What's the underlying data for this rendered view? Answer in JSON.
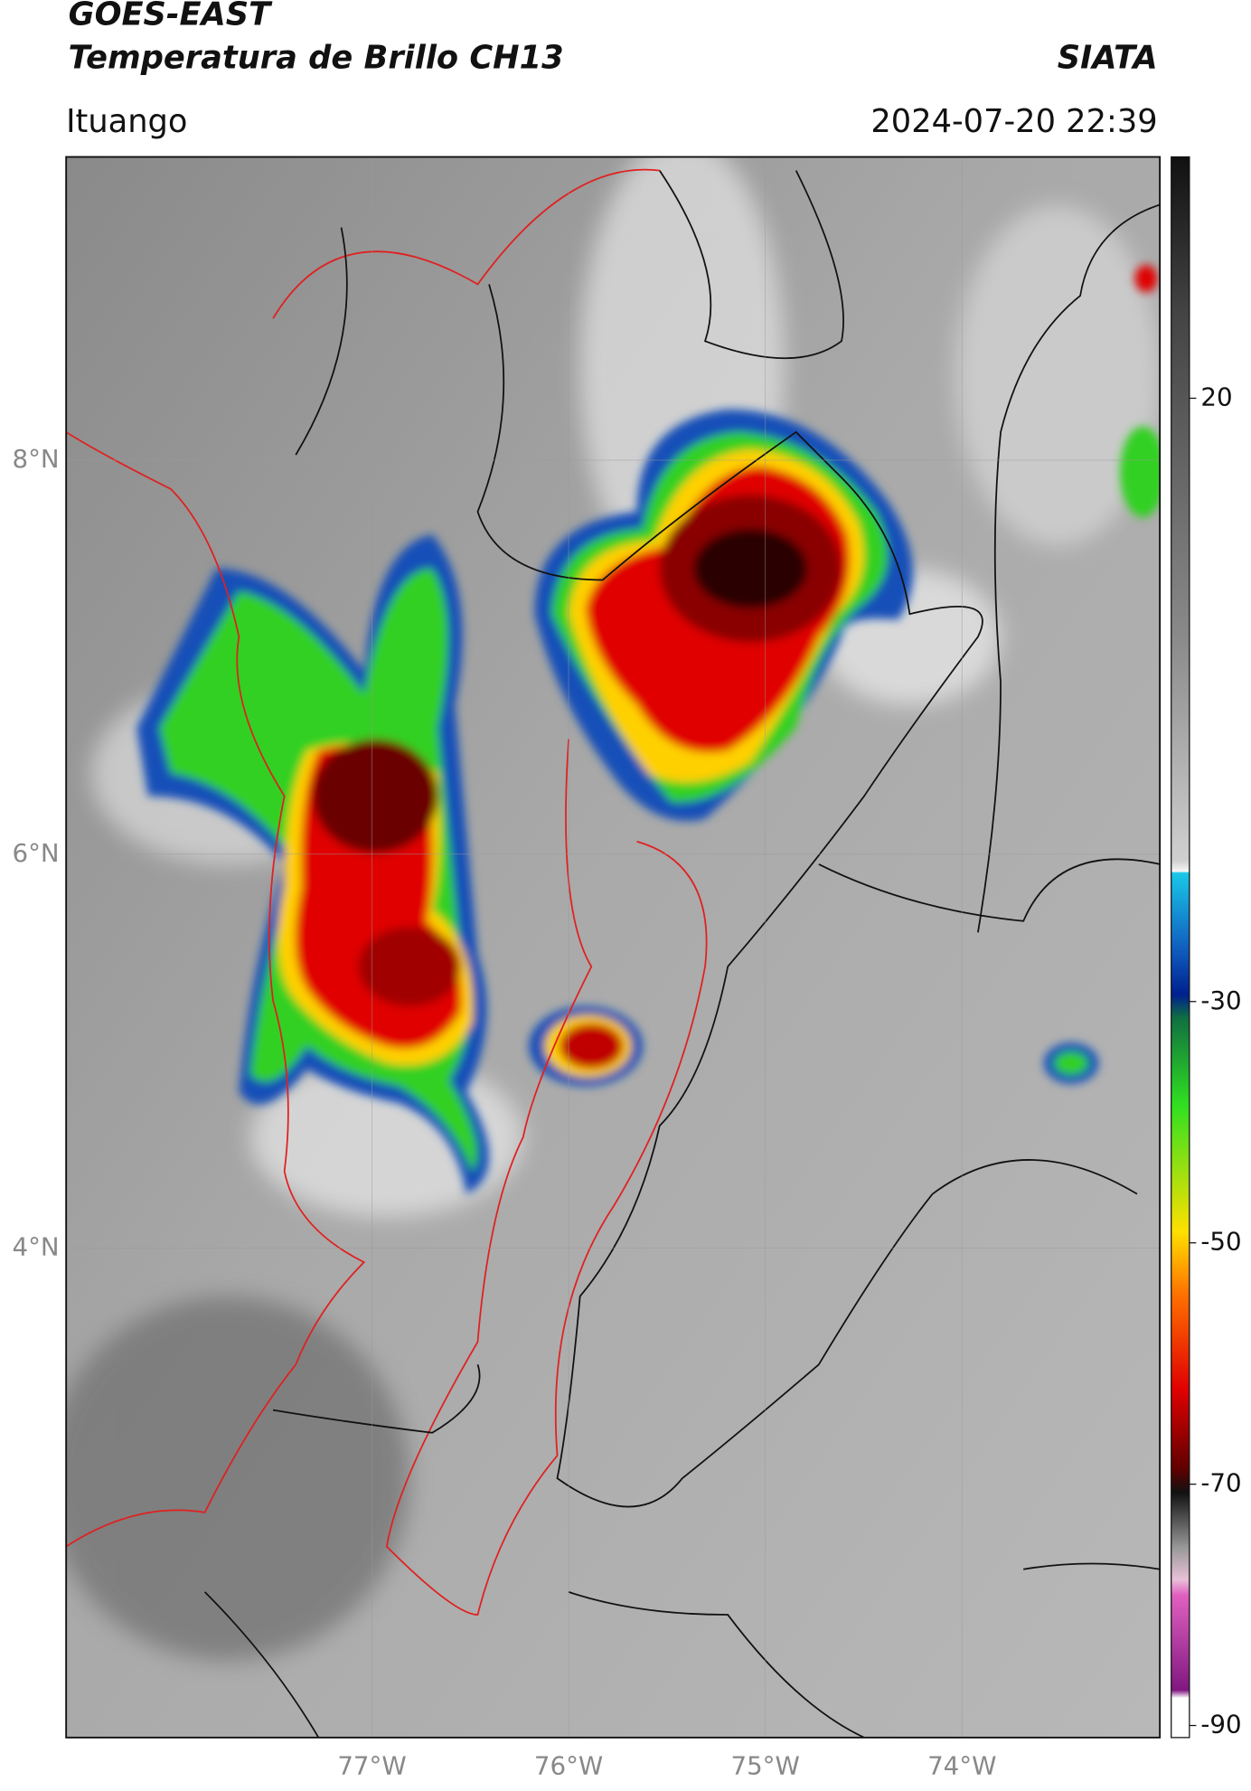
{
  "header": {
    "title": "GOES-EAST",
    "subtitle": "Temperatura de Brillo CH13",
    "source": "SIATA",
    "location": "Ituango",
    "datetime": "2024-07-20 22:39"
  },
  "map": {
    "xlim": [
      -78.555,
      -72.994
    ],
    "ylim": [
      1.516,
      9.539
    ],
    "lon_ticks": [
      {
        "value": -77,
        "label": "77°W"
      },
      {
        "value": -76,
        "label": "76°W"
      },
      {
        "value": -75,
        "label": "75°W"
      },
      {
        "value": -74,
        "label": "74°W"
      }
    ],
    "lat_ticks": [
      {
        "value": 8,
        "label": "8°N"
      },
      {
        "value": 6,
        "label": "6°N"
      },
      {
        "value": 4,
        "label": "4°N"
      }
    ],
    "grid": true
  },
  "colorbar": {
    "range": [
      -91,
      40
    ],
    "ticks": [
      20,
      -30,
      -50,
      -70,
      -90
    ]
  }
}
